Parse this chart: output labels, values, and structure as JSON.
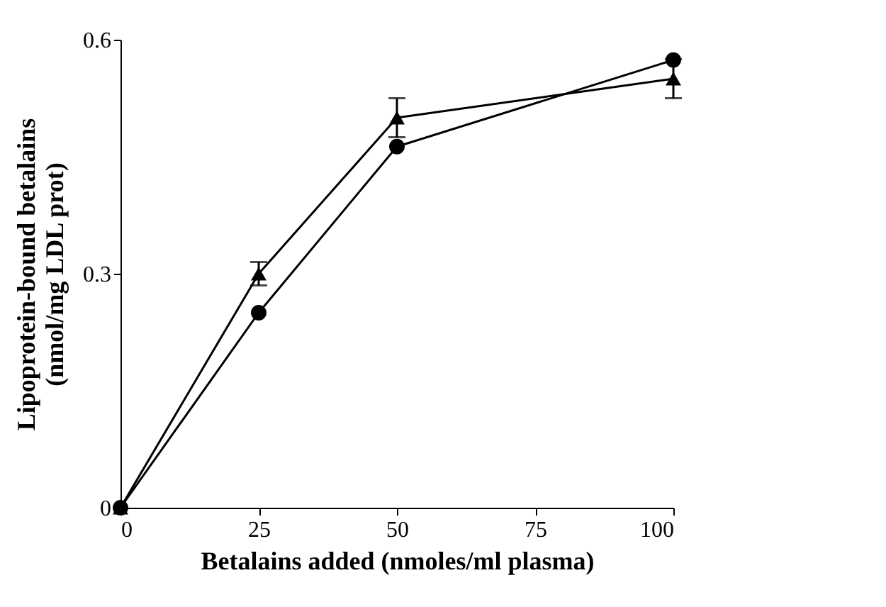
{
  "chart_data": {
    "type": "line",
    "xlabel": "Betalains added (nmoles/ml plasma)",
    "ylabel": "Lipoprotein-bound betalains\n(nmol/mg LDL prot)",
    "x": [
      0,
      25,
      50,
      100
    ],
    "series": [
      {
        "color": "#000000",
        "marker": "circle",
        "values": [
          0,
          0.25,
          0.463,
          0.574
        ]
      },
      {
        "color": "#000000",
        "marker": "triangle",
        "values": [
          0,
          0.3,
          0.5,
          0.55
        ],
        "errors": [
          null,
          0.015,
          0.025,
          0.025
        ]
      }
    ],
    "xlim": [
      0,
      100
    ],
    "xticks": [
      0,
      25,
      50,
      75,
      100
    ],
    "ylim": [
      0,
      0.6
    ],
    "yticks": [
      0,
      0.3,
      0.6
    ],
    "grid": false,
    "line_style": "solid"
  }
}
